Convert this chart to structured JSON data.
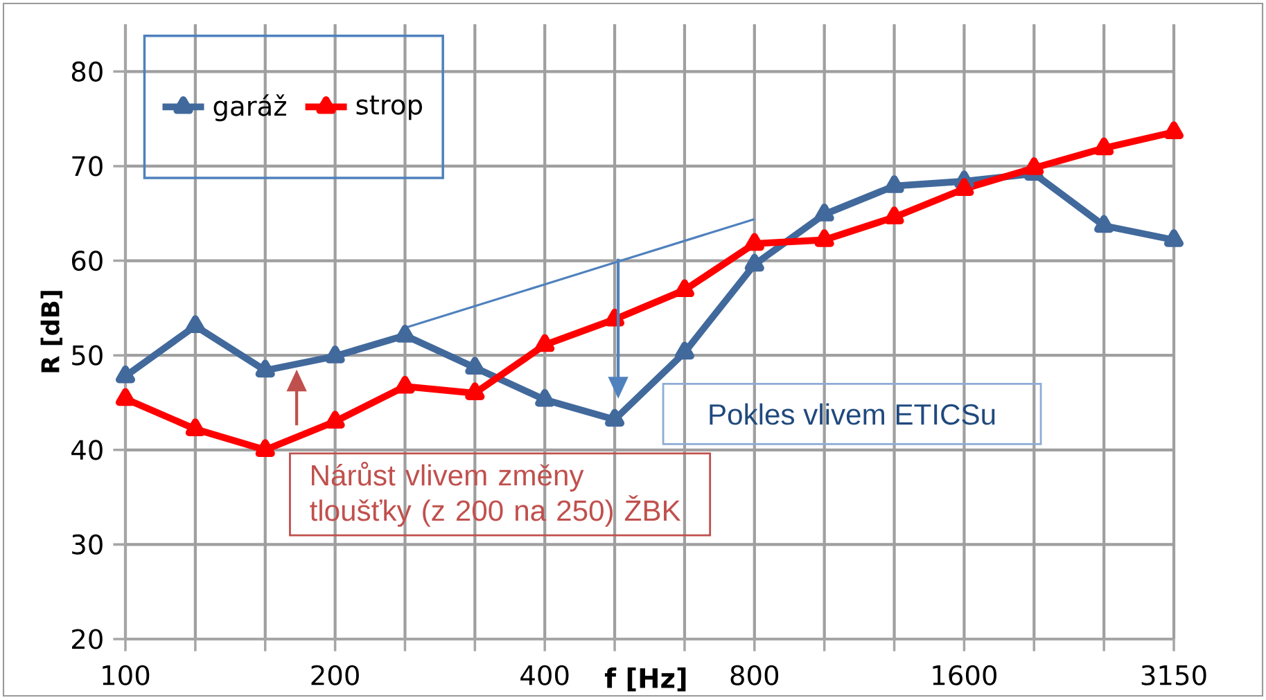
{
  "chart_data": {
    "type": "line",
    "xlabel": "f [Hz]",
    "ylabel": "R  [dB]",
    "categories": [
      "100",
      null,
      null,
      "200",
      null,
      null,
      "400",
      null,
      null,
      "800",
      null,
      null,
      "1600",
      null,
      null,
      "3150"
    ],
    "series": [
      {
        "name": "garáž",
        "color": "#41699c",
        "values": [
          47.8,
          53.1,
          48.4,
          49.9,
          52.1,
          48.7,
          45.3,
          43.2,
          50.3,
          59.6,
          64.9,
          67.9,
          68.4,
          69.2,
          63.7,
          62.2
        ]
      },
      {
        "name": "strop",
        "color": "#ff0000",
        "values": [
          45.4,
          42.2,
          40.0,
          43.0,
          46.7,
          46.0,
          51.1,
          53.8,
          56.9,
          61.8,
          62.2,
          64.6,
          67.6,
          69.8,
          71.9,
          73.6
        ]
      },
      {
        "type": "line",
        "color": "#4f81bd",
        "marker": "none",
        "values": [
          null,
          null,
          null,
          null,
          52.9,
          55.2,
          57.5,
          59.8,
          62.1,
          64.4,
          null,
          null,
          null,
          null,
          null,
          null
        ]
      }
    ],
    "ylim": [
      20,
      85
    ],
    "yticks": [
      20,
      30,
      40,
      50,
      60,
      70,
      80
    ],
    "grid": true,
    "legend": "top left",
    "marker": "triangle",
    "line_style": "solid",
    "annotations": [
      "Pokles vlivem ETICSu",
      "Nárůst vlivem změny tloušťky (z 200 na 250) ŽBK"
    ]
  }
}
